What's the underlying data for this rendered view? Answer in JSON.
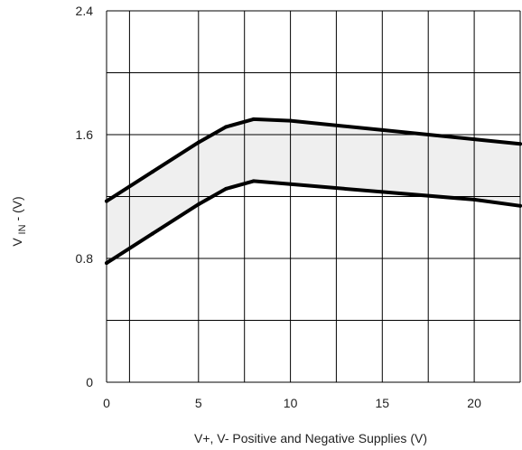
{
  "chart_data": {
    "type": "area",
    "title": "",
    "xlabel": "V+, V- Positive and Negative Supplies (V)",
    "ylabel": {
      "main": "V",
      "subscript": "IN",
      "suffix": " - (V)"
    },
    "xlim": [
      0,
      22.5
    ],
    "ylim": [
      0,
      2.4
    ],
    "x_ticks": [
      {
        "value": 0,
        "label": "0"
      },
      {
        "value": 5,
        "label": "5"
      },
      {
        "value": 10,
        "label": "10"
      },
      {
        "value": 15,
        "label": "15"
      },
      {
        "value": 20,
        "label": "20"
      }
    ],
    "y_ticks": [
      {
        "value": 0,
        "label": "0"
      },
      {
        "value": 0.8,
        "label": "0.8"
      },
      {
        "value": 1.6,
        "label": "1.6"
      },
      {
        "value": 2.4,
        "label": "2.4"
      }
    ],
    "grid": true,
    "grid_x": [
      0,
      1.25,
      5,
      7.5,
      10,
      12.5,
      15,
      17.5,
      20,
      22.5
    ],
    "grid_y": [
      0,
      0.4,
      0.8,
      1.2,
      1.6,
      2.0,
      2.4
    ],
    "series": [
      {
        "values": [
          {
            "x": 0,
            "y": 1.17
          },
          {
            "x": 2.5,
            "y": 1.36
          },
          {
            "x": 5,
            "y": 1.55
          },
          {
            "x": 6.5,
            "y": 1.65
          },
          {
            "x": 8,
            "y": 1.7
          },
          {
            "x": 10,
            "y": 1.69
          },
          {
            "x": 15,
            "y": 1.63
          },
          {
            "x": 20,
            "y": 1.57
          },
          {
            "x": 22.5,
            "y": 1.54
          }
        ]
      },
      {
        "values": [
          {
            "x": 0,
            "y": 0.77
          },
          {
            "x": 2.5,
            "y": 0.96
          },
          {
            "x": 5,
            "y": 1.15
          },
          {
            "x": 6.5,
            "y": 1.25
          },
          {
            "x": 8,
            "y": 1.3
          },
          {
            "x": 10,
            "y": 1.28
          },
          {
            "x": 15,
            "y": 1.23
          },
          {
            "x": 20,
            "y": 1.18
          },
          {
            "x": 22.5,
            "y": 1.14
          }
        ]
      }
    ],
    "colors": {
      "line": "#000000",
      "band_fill": "#efefef",
      "grid": "#000000",
      "text": "#222222"
    }
  }
}
